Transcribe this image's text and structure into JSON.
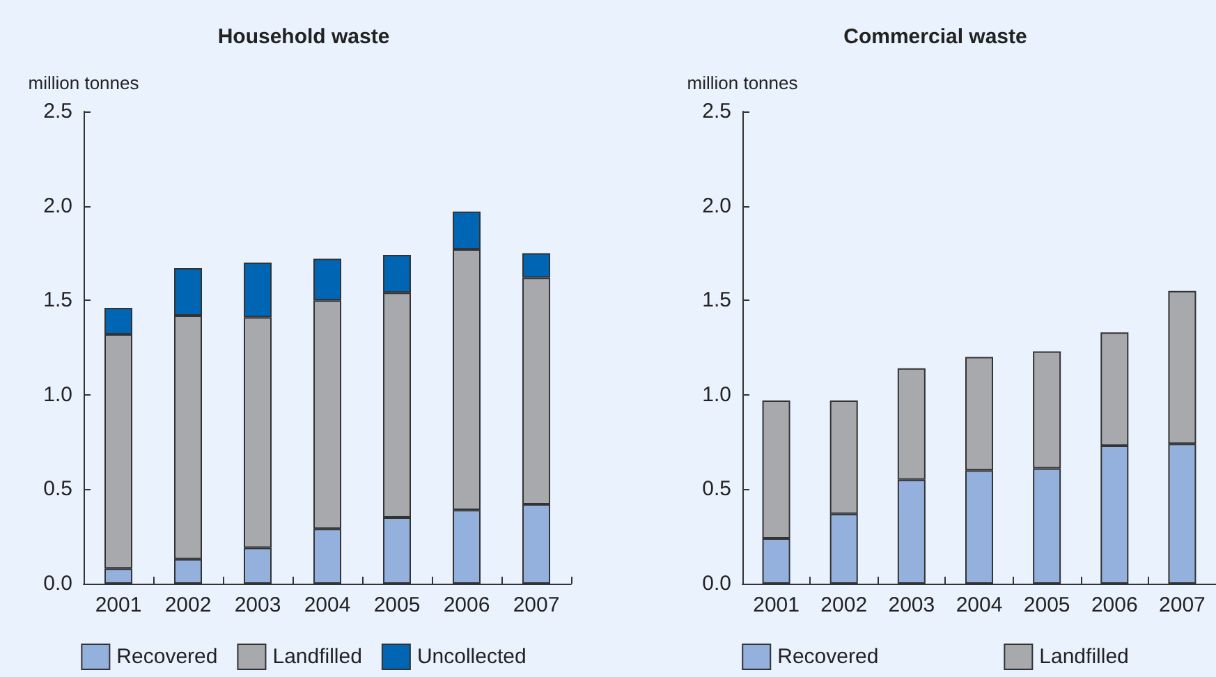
{
  "chart_data": [
    {
      "type": "bar",
      "title": "Household waste",
      "ylabel": "million tonnes",
      "categories": [
        "2001",
        "2002",
        "2003",
        "2004",
        "2005",
        "2006",
        "2007"
      ],
      "stacked": true,
      "ylim": [
        0,
        2.5
      ],
      "yticks": [
        {
          "value": 0,
          "label": "0.0"
        },
        0.5,
        {
          "value": 1,
          "label": "1.0"
        },
        1.5,
        {
          "value": 2,
          "label": "2.0"
        },
        2.5
      ],
      "grid": false,
      "legend": "bottom",
      "series": [
        {
          "name": "Recovered",
          "color": "#94b0dc",
          "values": [
            0.08,
            0.13,
            0.19,
            0.29,
            0.35,
            0.39,
            0.42
          ]
        },
        {
          "name": "Landfilled",
          "color": "#a8a9ad",
          "values": [
            1.24,
            1.29,
            1.22,
            1.21,
            1.19,
            1.38,
            1.2
          ]
        },
        {
          "name": "Uncollected",
          "color": "#0066b3",
          "values": [
            0.14,
            0.25,
            0.29,
            0.22,
            0.2,
            0.2,
            0.13
          ]
        }
      ]
    },
    {
      "type": "bar",
      "title": "Commercial waste",
      "ylabel": "million tonnes",
      "categories": [
        "2001",
        "2002",
        "2003",
        "2004",
        "2005",
        "2006",
        "2007"
      ],
      "stacked": true,
      "ylim": [
        0,
        2.5
      ],
      "yticks": [
        {
          "value": 0,
          "label": "0.0"
        },
        0.5,
        {
          "value": 1,
          "label": "1.0"
        },
        1.5,
        {
          "value": 2,
          "label": "2.0"
        },
        2.5
      ],
      "grid": false,
      "legend": "bottom",
      "series": [
        {
          "name": "Recovered",
          "color": "#94b0dc",
          "values": [
            0.24,
            0.37,
            0.55,
            0.6,
            0.61,
            0.73,
            0.74
          ]
        },
        {
          "name": "Landfilled",
          "color": "#a8a9ad",
          "values": [
            0.73,
            0.6,
            0.59,
            0.6,
            0.62,
            0.6,
            0.81
          ]
        }
      ]
    }
  ]
}
